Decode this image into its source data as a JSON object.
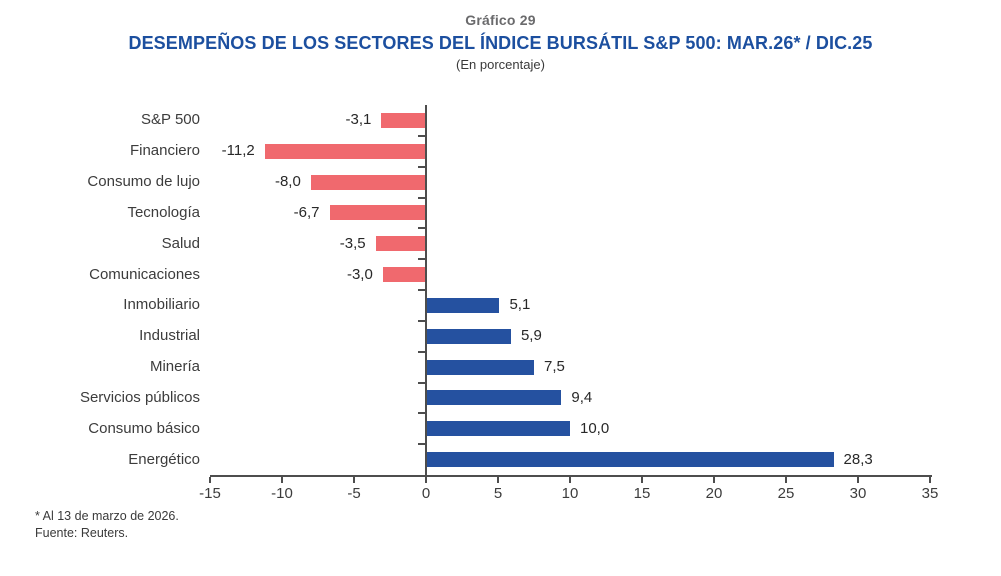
{
  "header": {
    "kicker": "Gráfico 29",
    "title": "DESEMPEÑOS DE LOS SECTORES DEL ÍNDICE BURSÁTIL S&P 500: MAR.26* / DIC.25",
    "subtitle": "(En porcentaje)"
  },
  "chart_data": {
    "type": "bar",
    "orientation": "horizontal",
    "title": "DESEMPEÑOS DE LOS SECTORES DEL ÍNDICE BURSÁTIL S&P 500: MAR.26* / DIC.25",
    "subtitle": "(En porcentaje)",
    "xlabel": "",
    "ylabel": "",
    "categories": [
      "S&P 500",
      "Financiero",
      "Consumo de lujo",
      "Tecnología",
      "Salud",
      "Comunicaciones",
      "Inmobiliario",
      "Industrial",
      "Minería",
      "Servicios públicos",
      "Consumo básico",
      "Energético"
    ],
    "values": [
      -3.1,
      -11.2,
      -8.0,
      -6.7,
      -3.5,
      -3.0,
      5.1,
      5.9,
      7.5,
      9.4,
      10.0,
      28.3
    ],
    "value_labels": [
      "-3,1",
      "-11,2",
      "-8,0",
      "-6,7",
      "-3,5",
      "-3,0",
      "5,1",
      "5,9",
      "7,5",
      "9,4",
      "10,0",
      "28,3"
    ],
    "xlim": [
      -15,
      35
    ],
    "xticks": [
      -15,
      -10,
      -5,
      0,
      5,
      10,
      15,
      20,
      25,
      30,
      35
    ],
    "xtick_labels": [
      "-15",
      "-10",
      "-5",
      "0",
      "5",
      "10",
      "15",
      "20",
      "25",
      "30",
      "35"
    ],
    "grid": false,
    "legend": "none",
    "negative_color": "#f0696e",
    "positive_color": "#2551a0"
  },
  "colors": {
    "title_blue": "#1c4f9f",
    "kicker_gray": "#6a6a6c",
    "axis_gray": "#4d4d4d",
    "label_text": "#3c3c3c"
  },
  "footnotes": {
    "note": "* Al 13 de marzo de 2026.",
    "source": "Fuente: Reuters."
  }
}
